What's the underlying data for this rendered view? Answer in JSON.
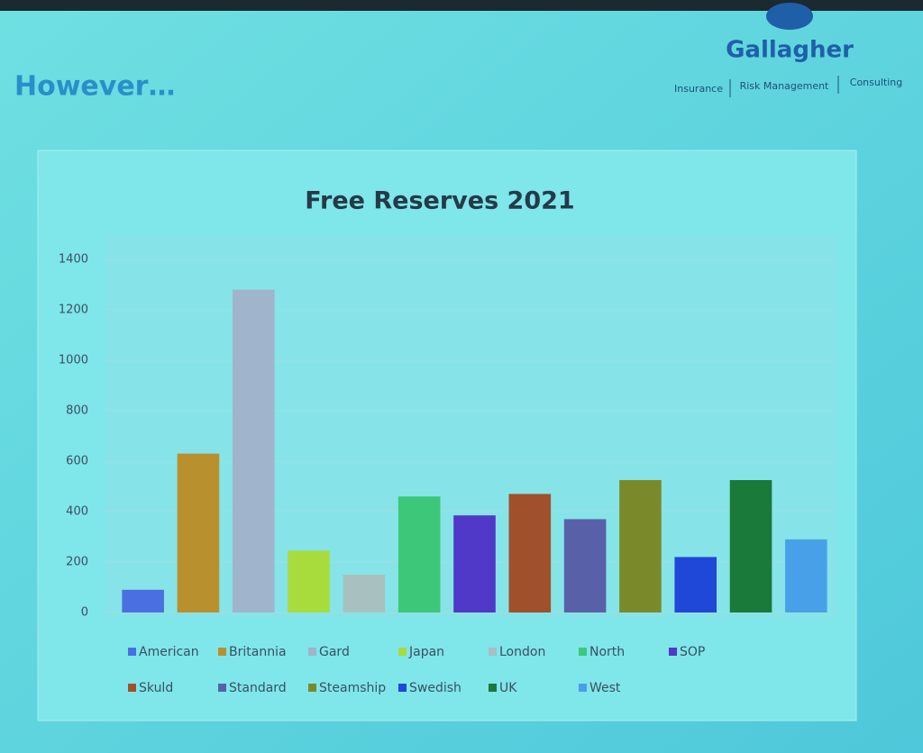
{
  "slide": {
    "heading": "However…",
    "brand": "Gallagher",
    "tagline": [
      "Insurance",
      "Risk Management",
      "Consulting"
    ]
  },
  "chart_data": {
    "type": "bar",
    "title": "Free Reserves 2021",
    "categories": [
      "American",
      "Britannia",
      "Gard",
      "Japan",
      "London",
      "North",
      "SOP",
      "Skuld",
      "Standard",
      "Steamship",
      "Swedish",
      "UK",
      "West"
    ],
    "values": [
      90,
      630,
      1280,
      245,
      150,
      460,
      385,
      470,
      370,
      525,
      220,
      525,
      290
    ],
    "colors": [
      "#4a6fe0",
      "#b8902e",
      "#a0b4cc",
      "#a8dc3c",
      "#a8c0c0",
      "#3cc878",
      "#5038c8",
      "#a0502a",
      "#5860a8",
      "#7a8a2a",
      "#2048d8",
      "#1a7a3a",
      "#48a0e8"
    ],
    "ylim": [
      0,
      1400
    ],
    "yticks": [
      0,
      200,
      400,
      600,
      800,
      1000,
      1200,
      1400
    ],
    "grid": true,
    "legend": "bottom"
  }
}
